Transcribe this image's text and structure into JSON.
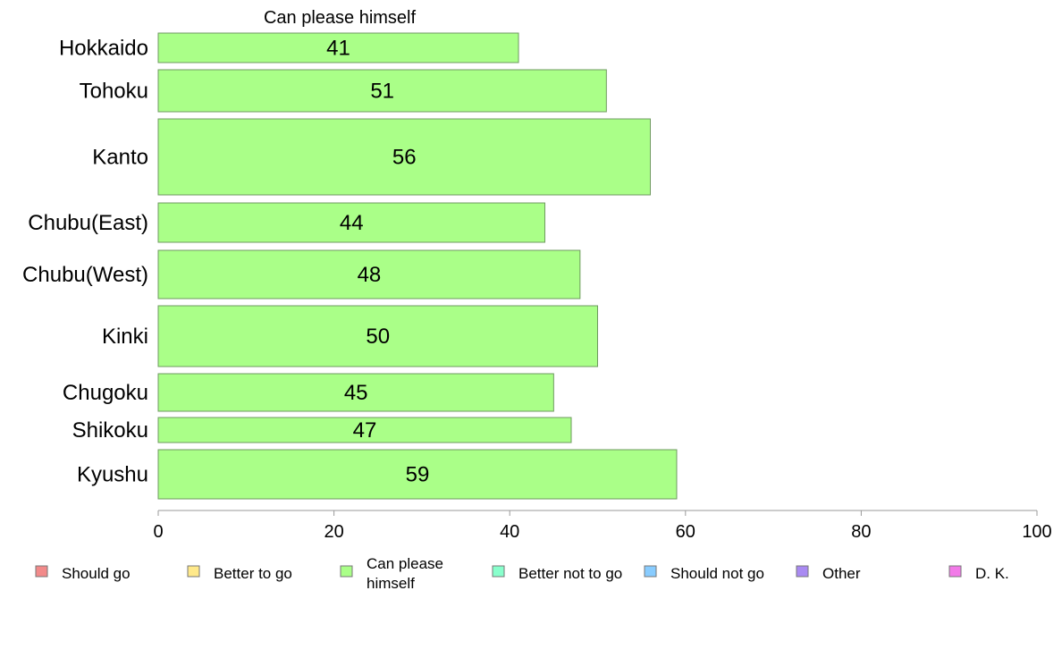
{
  "chart_data": {
    "type": "bar",
    "orientation": "horizontal",
    "title": "Can please himself",
    "categories": [
      "Hokkaido",
      "Tohoku",
      "Kanto",
      "Chubu(East)",
      "Chubu(West)",
      "Kinki",
      "Chugoku",
      "Shikoku",
      "Kyushu"
    ],
    "series": [
      {
        "name": "Can please himself",
        "values": [
          41,
          51,
          56,
          44,
          48,
          50,
          45,
          47,
          59
        ],
        "color": "#aaff88"
      }
    ],
    "xlim": [
      0,
      100
    ],
    "xticks": [
      0,
      20,
      40,
      60,
      80,
      100
    ],
    "grid": false,
    "legend_placement": "bottom",
    "legend": [
      {
        "label": "Should go",
        "color": "#f28a8a"
      },
      {
        "label": "Better to go",
        "color": "#ffe98a"
      },
      {
        "label": "Can please himself",
        "color": "#aaff88"
      },
      {
        "label": "Better not to go",
        "color": "#88ffcc"
      },
      {
        "label": "Should not go",
        "color": "#88ccff"
      },
      {
        "label": "Other",
        "color": "#a98af2"
      },
      {
        "label": "D. K.",
        "color": "#f27ae8"
      }
    ]
  }
}
